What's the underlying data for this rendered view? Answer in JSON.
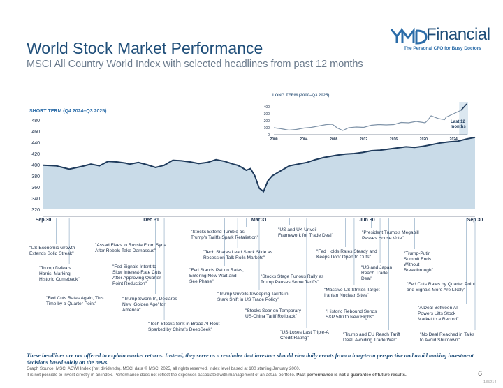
{
  "header": {
    "title": "World Stock Market Performance",
    "subtitle": "MSCI All Country World Index with selected headlines from past 12 months"
  },
  "brand": {
    "name": "Financial",
    "tagline": "The Personal CFO for Busy Doctors",
    "logo_color": "#1f4e79",
    "logo_icon": "ymd-monogram-icon"
  },
  "colors": {
    "area_fill": "#c9dbe8",
    "line": "#1f3b5c",
    "accent": "#1f4e79"
  },
  "chart_data": [
    {
      "type": "area",
      "panel_label": "SHORT TERM (Q4 2024–Q3 2025)",
      "ylim": [
        320,
        480
      ],
      "yticks": [
        320,
        340,
        360,
        380,
        400,
        420,
        440,
        460,
        480
      ],
      "xtick_labels": [
        "Sep 30",
        "Dec 31",
        "Mar 31",
        "Jun 30",
        "Sep 30"
      ],
      "xtick_pos": [
        0,
        0.25,
        0.5,
        0.75,
        1
      ],
      "x": [
        0,
        0.03,
        0.06,
        0.09,
        0.11,
        0.13,
        0.15,
        0.17,
        0.19,
        0.2,
        0.22,
        0.24,
        0.26,
        0.28,
        0.3,
        0.32,
        0.34,
        0.36,
        0.38,
        0.4,
        0.42,
        0.44,
        0.45,
        0.46,
        0.47,
        0.48,
        0.49,
        0.5,
        0.51,
        0.52,
        0.53,
        0.55,
        0.57,
        0.59,
        0.61,
        0.63,
        0.65,
        0.68,
        0.7,
        0.72,
        0.74,
        0.76,
        0.78,
        0.8,
        0.82,
        0.84,
        0.86,
        0.88,
        0.9,
        0.92,
        0.94,
        0.96,
        0.98,
        1.0
      ],
      "y": [
        399,
        398,
        392,
        397,
        401,
        398,
        406,
        405,
        403,
        401,
        404,
        400,
        395,
        399,
        408,
        407,
        405,
        402,
        404,
        409,
        406,
        401,
        399,
        395,
        390,
        393,
        380,
        358,
        352,
        371,
        380,
        389,
        398,
        401,
        404,
        409,
        413,
        417,
        419,
        420,
        422,
        425,
        426,
        428,
        430,
        432,
        431,
        433,
        436,
        439,
        441,
        442,
        446,
        449
      ],
      "long_term": {
        "panel_label": "LONG TERM (2000–Q3 2025)",
        "ylim": [
          0,
          450
        ],
        "yticks": [
          0,
          100,
          200,
          300,
          400
        ],
        "xticks": [
          2000,
          2004,
          2008,
          2012,
          2016,
          2020,
          2024
        ],
        "x": [
          2000,
          2001,
          2002,
          2003,
          2004,
          2005,
          2006,
          2007,
          2007.8,
          2008.5,
          2009.2,
          2010,
          2011,
          2012,
          2013,
          2014,
          2015,
          2016,
          2017,
          2018,
          2019,
          2020.2,
          2020.5,
          2021,
          2022,
          2022.8,
          2023,
          2024,
          2025,
          2025.75
        ],
        "y": [
          100,
          85,
          65,
          75,
          95,
          105,
          125,
          145,
          150,
          95,
          60,
          100,
          110,
          105,
          135,
          145,
          140,
          145,
          175,
          170,
          190,
          170,
          200,
          270,
          230,
          215,
          250,
          300,
          350,
          440
        ],
        "highlight_start": 2024.75,
        "highlight_label": [
          "Last 12",
          "months"
        ]
      }
    }
  ],
  "headlines": [
    {
      "lines": [
        "\"US Economic Growth",
        "Extends Solid Streak\""
      ],
      "x": 0.03
    },
    {
      "lines": [
        "\"Trump Defeats",
        "Harris, Marking",
        "Historic Comeback\""
      ],
      "x": 0.06
    },
    {
      "lines": [
        "\"Fed Cuts Rates Again, This",
        "Time by a Quarter Point\""
      ],
      "x": 0.09
    },
    {
      "lines": [
        "\"Assad Flees to Russia From Syria",
        "After Rebels Take Damascus\""
      ],
      "x": 0.15
    },
    {
      "lines": [
        "\"Fed Signals Intent to",
        "Slow Interest-Rate Cuts",
        "After Approving Quarter-",
        "Point Reduction\""
      ],
      "x": 0.24
    },
    {
      "lines": [
        "\"Trump Sworn In, Declares",
        "New 'Golden Age' for",
        "America\""
      ],
      "x": 0.26
    },
    {
      "lines": [
        "\"Tech Stocks Sink in Broad AI Rout",
        "Sparked by China's DeepSeek\""
      ],
      "x": 0.28
    },
    {
      "lines": [
        "\"Stocks Extend Tumble as",
        "Trump's Tariffs Spark Retaliation\""
      ],
      "x": 0.47
    },
    {
      "lines": [
        "\"Fed Stands Pat on Rates,",
        "Entering New Wait-and-",
        "See Phase\""
      ],
      "x": 0.42
    },
    {
      "lines": [
        "\"Tech Shares Lead Stock Slide as",
        "Recession Talk Roils Markets\""
      ],
      "x": 0.45
    },
    {
      "lines": [
        "\"Trump Unveils Sweeping Tariffs in",
        "Stark Shift in US Trade Policy\""
      ],
      "x": 0.5
    },
    {
      "lines": [
        "\"US and UK Unveil",
        "Framework for Trade Deal\""
      ],
      "x": 0.57
    },
    {
      "lines": [
        "\"Stocks Soar on Temporary",
        "US-China Tariff Rollback\""
      ],
      "x": 0.59
    },
    {
      "lines": [
        "\"Stocks Stage Furious Rally as",
        "Trump Pauses Some Tariffs\""
      ],
      "x": 0.53
    },
    {
      "lines": [
        "\"US Loses Last Triple-A",
        "Credit Rating\""
      ],
      "x": 0.61
    },
    {
      "lines": [
        "\"Fed Holds Rates Steady and",
        "Keeps Door Open to Cuts\""
      ],
      "x": 0.7
    },
    {
      "lines": [
        "\"Massive US Strikes Target",
        "Iranian Nuclear Sites\""
      ],
      "x": 0.72
    },
    {
      "lines": [
        "\"Historic Rebound Sends",
        "S&P 500 to New Highs\""
      ],
      "x": 0.74
    },
    {
      "lines": [
        "\"Trump and EU Reach Tariff",
        "Deal, Avoiding Trade War\""
      ],
      "x": 0.8
    },
    {
      "lines": [
        "\"President Trump's Megabill",
        "Passes House Vote\""
      ],
      "x": 0.76
    },
    {
      "lines": [
        "\"US and Japan",
        "Reach Trade",
        "Deal\""
      ],
      "x": 0.78
    },
    {
      "lines": [
        "\"Trump-Putin",
        "Summit Ends",
        "Without",
        "Breakthrough\""
      ],
      "x": 0.86
    },
    {
      "lines": [
        "\"Fed Cuts Rates by Quarter Point",
        "and Signals More Are Likely\""
      ],
      "x": 0.96
    },
    {
      "lines": [
        "\"A Deal Between AI",
        "Powers Lifts Stock",
        "Market to a Record\""
      ],
      "x": 0.98
    },
    {
      "lines": [
        "\"No Deal Reached in Talks",
        "to Avoid Shutdown\""
      ],
      "x": 1.0
    }
  ],
  "footer": {
    "disclaimer": "These headlines are not offered to explain market returns. Instead, they serve as a reminder that investors should view daily events from a long-term perspective and avoid making investment decisions based solely on the news.",
    "source": "Graph Source: MSCI ACWI Index (net dividends). MSCI data © MSCI 2025, all rights reserved. Index level based at 100 starting January 2000.",
    "notice_prefix": "It is not possible to invest directly in an index. Performance does not reflect the expenses associated with management of an actual portfolio. ",
    "notice_bold": "Past performance is not a guarantee of future results.",
    "page_number": "6",
    "code": "135214"
  }
}
